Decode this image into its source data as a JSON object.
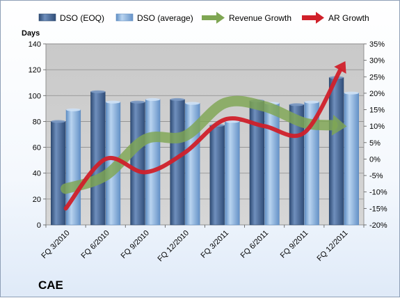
{
  "company_label": "CAE",
  "colors": {
    "dso_eoq": "#4f6e9a",
    "dso_avg": "#8cb3dc",
    "revenue_growth": "#7fa653",
    "ar_growth": "#d0202a"
  },
  "chart_data": {
    "type": "bar",
    "categories": [
      "FQ 3/2010",
      "FQ 6/2010",
      "FQ 9/2010",
      "FQ 12/2010",
      "FQ 3/2011",
      "FQ 6/2011",
      "FQ 9/2011",
      "FQ 12/2011"
    ],
    "series": [
      {
        "name": "DSO (EOQ)",
        "type": "bar",
        "axis": "left",
        "values": [
          80,
          103,
          95,
          97,
          77,
          96,
          93,
          114
        ]
      },
      {
        "name": "DSO (average)",
        "type": "bar",
        "axis": "left",
        "values": [
          89,
          95,
          97,
          94,
          80,
          94,
          95,
          102
        ]
      },
      {
        "name": "Revenue Growth",
        "type": "line",
        "axis": "right",
        "marker": "green-arrow",
        "values": [
          -9,
          -5,
          6,
          7,
          17,
          16,
          11,
          10
        ]
      },
      {
        "name": "AR Growth",
        "type": "line",
        "axis": "right",
        "marker": "red-arrow",
        "values": [
          -15,
          0,
          -4,
          2,
          12,
          10,
          8,
          29
        ]
      }
    ],
    "ylabel": "Days",
    "ylim": [
      0,
      140
    ],
    "yticks": [
      "0",
      "20",
      "40",
      "60",
      "80",
      "100",
      "120",
      "140"
    ],
    "y2lim": [
      -20,
      35
    ],
    "y2ticks": [
      "-20%",
      "-15%",
      "-10%",
      "-5%",
      "0%",
      "5%",
      "10%",
      "15%",
      "20%",
      "25%",
      "30%",
      "35%"
    ],
    "grid": true,
    "legend": "top"
  }
}
